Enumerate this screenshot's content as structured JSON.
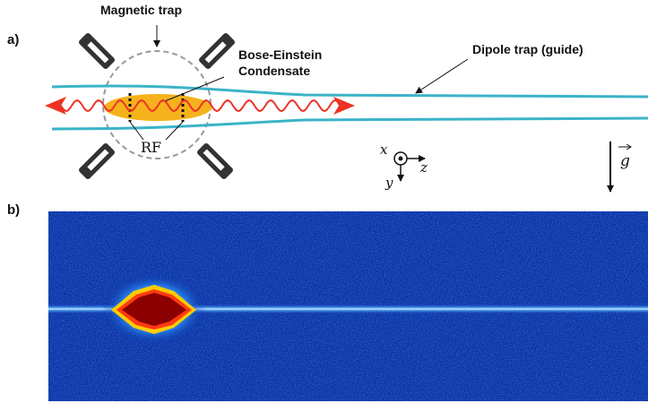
{
  "panel_a": {
    "label": "a)",
    "magnetic_trap_label": "Magnetic trap",
    "bec_label_line1": "Bose-Einstein",
    "bec_label_line2": "Condensate",
    "dipole_label": "Dipole trap (guide)",
    "rf_label": "RF",
    "axes": {
      "x": "x",
      "y": "y",
      "z": "z"
    },
    "gravity_label": "g"
  },
  "panel_b": {
    "label": "b)"
  },
  "colors": {
    "guide": "#3bb3c8",
    "bec": "#f5b21c",
    "rf_wave": "#ee3124",
    "dashed_circle": "#999999",
    "image_background": "#0a2a9a",
    "image_beam": "#cfe8ff",
    "image_core": "#8b0000"
  }
}
